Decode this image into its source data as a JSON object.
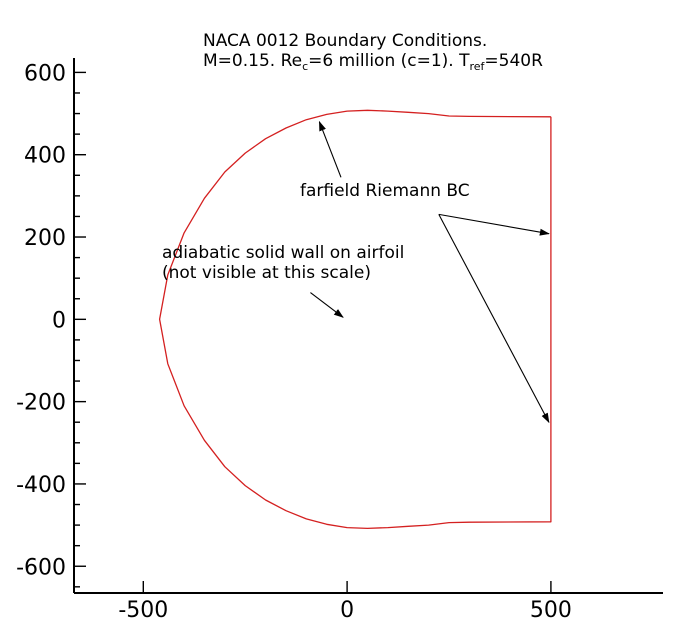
{
  "title": {
    "line1": "NACA 0012 Boundary Conditions.",
    "line2": {
      "m": "M=0.15. Re",
      "re_sub": "c",
      "re_val": "=6 million (c=1). T",
      "t_sub": "ref",
      "t_val": "=540R"
    }
  },
  "annotations": {
    "farfield": "farfield Riemann BC",
    "wall_line1": "adiabatic solid wall on airfoil",
    "wall_line2": "(not visible at this scale)"
  },
  "colors": {
    "boundary": "#d42020",
    "axis": "#000000"
  },
  "chart_data": {
    "type": "line",
    "xlim": [
      -670,
      775
    ],
    "ylim": [
      -665,
      635
    ],
    "xticks": [
      -500,
      0,
      500
    ],
    "xtick_labels": [
      "-500",
      "0",
      "500"
    ],
    "yticks": [
      600,
      400,
      200,
      0,
      -200,
      -400,
      -600
    ],
    "ytick_labels": [
      "600",
      "400",
      "200",
      "0",
      "-200",
      "-400",
      "-600"
    ],
    "y_minor_step": 50,
    "boundary": [
      [
        500,
        492
      ],
      [
        300,
        493
      ],
      [
        250,
        494
      ],
      [
        200,
        500
      ],
      [
        150,
        503
      ],
      [
        100,
        506
      ],
      [
        50,
        508
      ],
      [
        0,
        506
      ],
      [
        -50,
        498
      ],
      [
        -100,
        485
      ],
      [
        -150,
        465
      ],
      [
        -200,
        439
      ],
      [
        -250,
        404
      ],
      [
        -300,
        358
      ],
      [
        -350,
        294
      ],
      [
        -400,
        210
      ],
      [
        -440,
        108
      ],
      [
        -460,
        0
      ],
      [
        -440,
        -108
      ],
      [
        -400,
        -210
      ],
      [
        -350,
        -294
      ],
      [
        -300,
        -358
      ],
      [
        -250,
        -404
      ],
      [
        -200,
        -439
      ],
      [
        -150,
        -465
      ],
      [
        -100,
        -485
      ],
      [
        -50,
        -498
      ],
      [
        0,
        -506
      ],
      [
        50,
        -508
      ],
      [
        100,
        -506
      ],
      [
        150,
        -503
      ],
      [
        200,
        -500
      ],
      [
        250,
        -494
      ],
      [
        300,
        -493
      ],
      [
        500,
        -492
      ],
      [
        500,
        492
      ]
    ],
    "arrows": [
      {
        "from": [
          -15,
          345
        ],
        "to": [
          -68,
          480
        ]
      },
      {
        "from": [
          225,
          255
        ],
        "to": [
          495,
          208
        ]
      },
      {
        "from": [
          225,
          255
        ],
        "to": [
          495,
          -250
        ]
      },
      {
        "from": [
          -90,
          65
        ],
        "to": [
          -10,
          5
        ]
      }
    ]
  }
}
